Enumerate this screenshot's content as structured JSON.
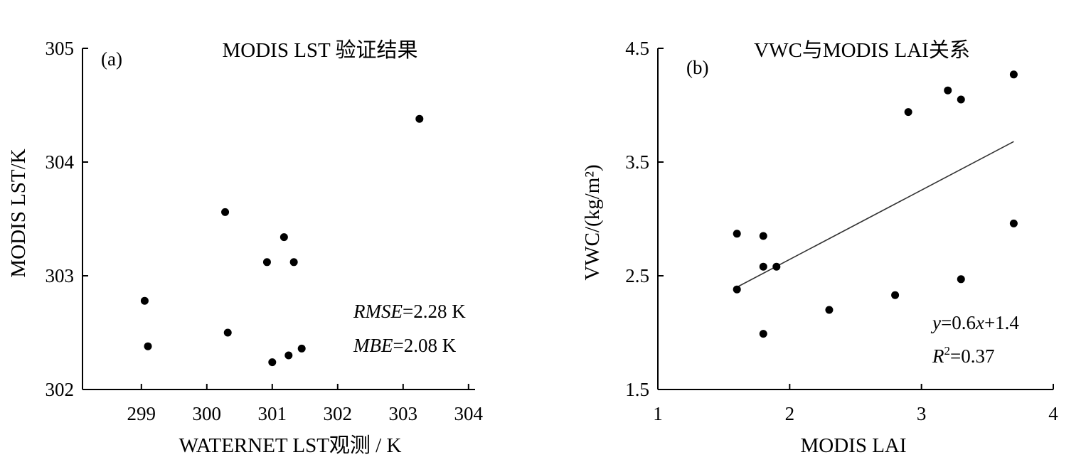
{
  "chart_data": [
    {
      "type": "scatter",
      "panel_tag": "(a)",
      "title": "MODIS LST 验证结果",
      "xlabel": "WATERNET LST观测 / K",
      "ylabel": "MODIS LST/K",
      "xlim": [
        298.1,
        304.1
      ],
      "ylim": [
        302,
        305
      ],
      "xticks": [
        299,
        300,
        301,
        302,
        303,
        304
      ],
      "yticks": [
        302,
        303,
        304,
        305
      ],
      "grid": false,
      "x": [
        299.05,
        299.1,
        300.28,
        300.32,
        300.92,
        301.0,
        301.18,
        301.25,
        301.33,
        301.45,
        303.25
      ],
      "y": [
        302.78,
        302.38,
        303.56,
        302.5,
        303.12,
        302.24,
        303.34,
        302.3,
        303.12,
        302.36,
        304.38
      ],
      "stats": [
        {
          "italic": "RMSE",
          "rest": "=2.28 K"
        },
        {
          "italic": "MBE",
          "rest": "=2.08 K"
        }
      ]
    },
    {
      "type": "scatter",
      "panel_tag": "(b)",
      "title": "VWC与MODIS LAI关系",
      "xlabel": "MODIS LAI",
      "ylabel": "VWC/(kg/m²)",
      "xlim": [
        1,
        4
      ],
      "ylim": [
        1.5,
        4.5
      ],
      "xticks": [
        1,
        2,
        3,
        4
      ],
      "yticks": [
        1.5,
        2.5,
        3.5,
        4.5
      ],
      "grid": false,
      "x": [
        1.6,
        1.6,
        1.8,
        1.8,
        1.9,
        1.8,
        2.3,
        2.8,
        2.9,
        3.2,
        3.3,
        3.3,
        3.7,
        3.7
      ],
      "y": [
        2.87,
        2.38,
        2.85,
        2.58,
        2.58,
        1.99,
        2.2,
        2.33,
        3.94,
        4.13,
        4.05,
        2.47,
        4.27,
        2.96
      ],
      "fit": {
        "x": [
          1.6,
          3.7
        ],
        "y": [
          2.4,
          3.68
        ]
      },
      "equation": {
        "italic": "y",
        "rest": "=0.6",
        "italic2": "x",
        "rest2": "+1.4"
      },
      "r2": {
        "italic": "R",
        "sup": "2",
        "rest": "=0.37"
      }
    }
  ]
}
